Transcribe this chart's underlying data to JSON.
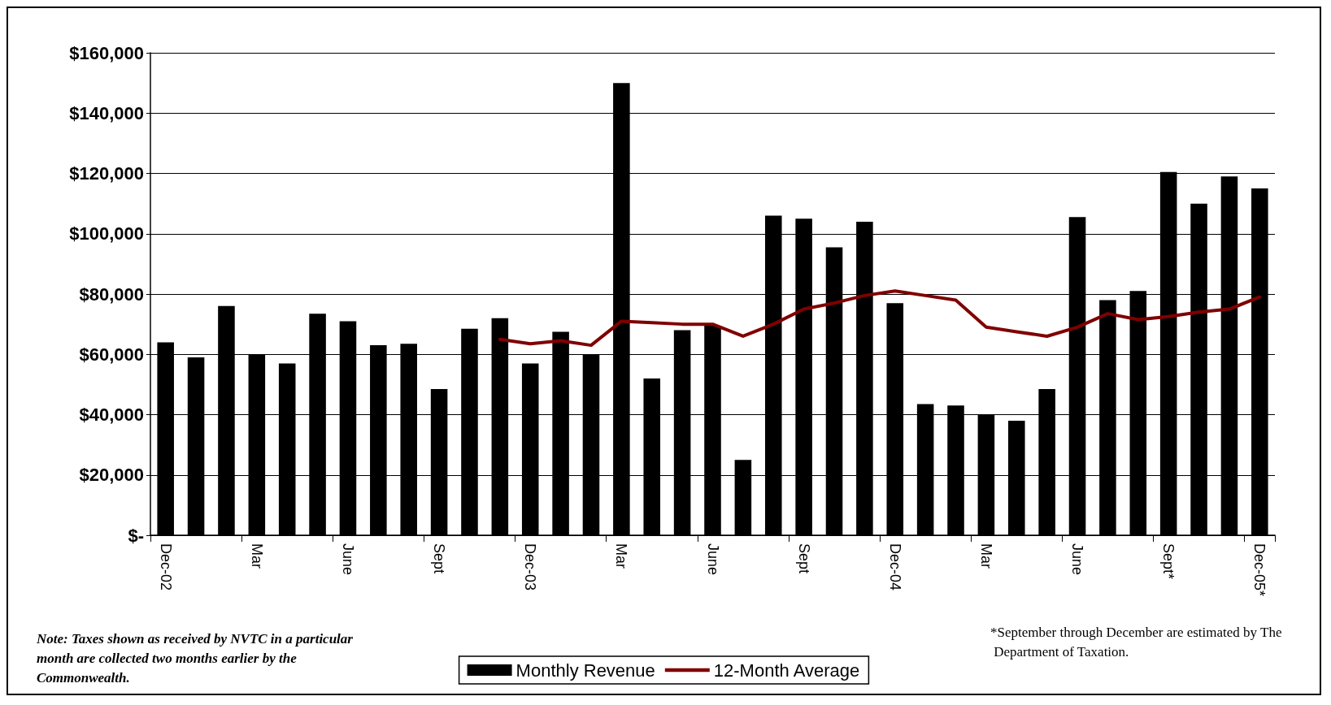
{
  "chart_data": {
    "type": "bar",
    "categories": [
      "Dec-02",
      null,
      null,
      "Mar",
      null,
      null,
      "June",
      null,
      null,
      "Sept",
      null,
      null,
      "Dec-03",
      null,
      null,
      "Mar",
      null,
      null,
      "June",
      null,
      null,
      "Sept",
      null,
      null,
      "Dec-04",
      null,
      null,
      "Mar",
      null,
      null,
      "June",
      null,
      null,
      "Sept*",
      null,
      null,
      "Dec-05*"
    ],
    "series": [
      {
        "name": "Monthly Revenue",
        "color": "#000000",
        "values": [
          64000,
          59000,
          76000,
          60000,
          57000,
          73500,
          71000,
          63000,
          63500,
          48500,
          68500,
          72000,
          57000,
          67500,
          60000,
          150000,
          52000,
          68000,
          69500,
          25000,
          106000,
          105000,
          95500,
          104000,
          77000,
          43500,
          43000,
          40000,
          38000,
          48500,
          105500,
          78000,
          81000,
          120500,
          110000,
          119000,
          115000
        ]
      },
      {
        "name": "12-Month Average",
        "type": "line",
        "color": "#800000",
        "values": [
          null,
          null,
          null,
          null,
          null,
          null,
          null,
          null,
          null,
          null,
          null,
          65000,
          63500,
          64500,
          63000,
          71000,
          70500,
          70000,
          70000,
          66000,
          70000,
          75000,
          77000,
          79500,
          81000,
          79500,
          78000,
          69000,
          67500,
          66000,
          69000,
          73500,
          71500,
          72500,
          74000,
          75000,
          79000
        ]
      }
    ],
    "ylim": [
      0,
      160000
    ],
    "yticks": [
      {
        "value": 0,
        "label": "$-"
      },
      {
        "value": 20000,
        "label": "$20,000"
      },
      {
        "value": 40000,
        "label": "$40,000"
      },
      {
        "value": 60000,
        "label": "$60,000"
      },
      {
        "value": 80000,
        "label": "$80,000"
      },
      {
        "value": 100000,
        "label": "$100,000"
      },
      {
        "value": 120000,
        "label": "$120,000"
      },
      {
        "value": 140000,
        "label": "$140,000"
      },
      {
        "value": 160000,
        "label": "$160,000"
      }
    ],
    "grid": "y",
    "legend": "bottom",
    "marker": "none",
    "line_style": "solid",
    "annotations": [
      "Note: Taxes shown as received by NVTC in a particular month are collected two months earlier by the Commonwealth.",
      "*September through December are estimated by The Department of Taxation."
    ]
  }
}
